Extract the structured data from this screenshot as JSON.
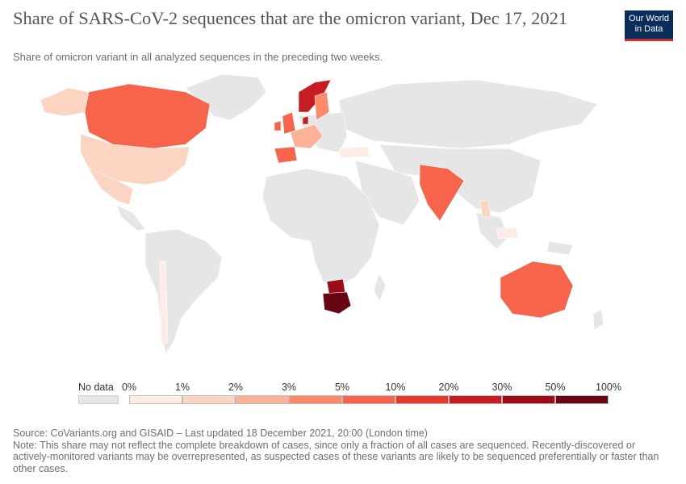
{
  "header": {
    "title": "Share of SARS-CoV-2 sequences that are the omicron variant, Dec 17, 2021",
    "subtitle": "Share of omicron variant in all analyzed sequences in the preceding two weeks.",
    "logo_text_line1": "Our World",
    "logo_text_line2": "in Data"
  },
  "legend": {
    "no_data_label": "No data",
    "ticks": [
      "0%",
      "1%",
      "2%",
      "3%",
      "5%",
      "10%",
      "20%",
      "30%",
      "50%",
      "100%"
    ],
    "colors": [
      "#fdece5",
      "#fcd4c2",
      "#fcb297",
      "#fb8a6a",
      "#f6644b",
      "#e4392f",
      "#c71c22",
      "#9c0d18",
      "#660713"
    ],
    "no_data_color": "#e6e6e6"
  },
  "map_regions": [
    {
      "name": "South Africa",
      "bin": 8
    },
    {
      "name": "Botswana",
      "bin": 7
    },
    {
      "name": "Norway",
      "bin": 6
    },
    {
      "name": "Denmark",
      "bin": 6
    },
    {
      "name": "United Kingdom",
      "bin": 5
    },
    {
      "name": "Canada",
      "bin": 4
    },
    {
      "name": "India",
      "bin": 4
    },
    {
      "name": "Australia",
      "bin": 4
    },
    {
      "name": "Spain",
      "bin": 4
    },
    {
      "name": "Ireland",
      "bin": 4
    },
    {
      "name": "Sweden",
      "bin": 3
    },
    {
      "name": "France",
      "bin": 2
    },
    {
      "name": "Germany",
      "bin": 2
    },
    {
      "name": "Italy",
      "bin": 2
    },
    {
      "name": "Portugal",
      "bin": 4
    },
    {
      "name": "United States",
      "bin": 1
    },
    {
      "name": "Mexico",
      "bin": 1
    },
    {
      "name": "Alaska",
      "bin": 1
    },
    {
      "name": "Turkey",
      "bin": 0
    },
    {
      "name": "Thailand",
      "bin": 1
    },
    {
      "name": "Indonesia",
      "bin": 0
    },
    {
      "name": "Chile",
      "bin": 0
    }
  ],
  "footer": {
    "source": "Source: CoVariants.org and GISAID – Last updated 18 December 2021, 20:00 (London time)",
    "note": "Note: This share may not reflect the complete breakdown of cases, since only a fraction of all cases are sequenced. Recently-discovered or actively-monitored variants may be overrepresented, as suspected cases of these variants are likely to be sequenced preferentially or faster than other cases."
  }
}
